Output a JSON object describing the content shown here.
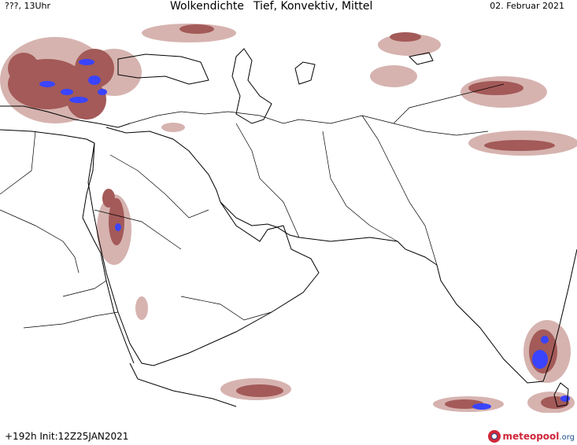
{
  "header": {
    "left": "???, 13Uhr",
    "title_a": "Wolkendichte",
    "title_b": "Tief, Konvektiv, Mittel",
    "date": "02. Februar 2021"
  },
  "footer": {
    "run_info": "+192h  Init:12Z25JAN2021"
  },
  "logo": {
    "name": "meteopool",
    "tld": ".org"
  },
  "legend_colors": {
    "cloud_low": "#a35a58",
    "cloud_light": "#c99a95",
    "cloud_convective": "#3a44ff",
    "coastline": "#000000",
    "background": "#ffffff"
  }
}
